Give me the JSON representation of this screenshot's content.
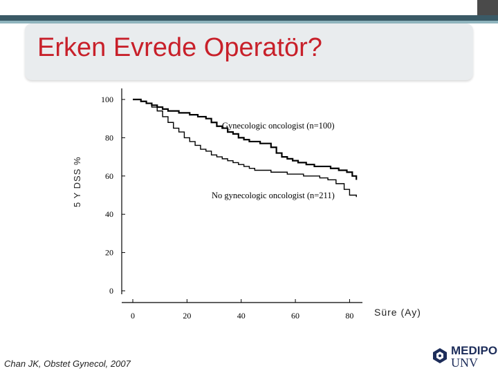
{
  "slide": {
    "title": "Erken Evrede Operatör?",
    "citation": "Chan JK, Obstet Gynecol, 2007",
    "logo": {
      "name": "MEDIPOL",
      "sub": "UNV"
    }
  },
  "colors": {
    "title": "#c8202a",
    "line": "#000000",
    "header_bar": "#3a5a66",
    "logo": "#1d2d5a"
  },
  "chart_data": {
    "type": "line",
    "xlabel": "Süre (Ay)",
    "ylabel": "5 Y DSS %",
    "xlim": [
      0,
      85
    ],
    "ylim": [
      0,
      100
    ],
    "xticks": [
      0,
      20,
      40,
      60,
      80
    ],
    "yticks": [
      0,
      20,
      40,
      60,
      80,
      100
    ],
    "series": [
      {
        "name": "Gynecologic oncologist (n=100)",
        "style": "step",
        "x": [
          0,
          3,
          5,
          7,
          9,
          11,
          13,
          15,
          17,
          19,
          21,
          24,
          27,
          29,
          31,
          33,
          35,
          37,
          39,
          41,
          43,
          45,
          47,
          49,
          51,
          53,
          55,
          57,
          59,
          61,
          64,
          67,
          70,
          73,
          76,
          79,
          81,
          82.5
        ],
        "y": [
          100,
          99,
          98,
          97,
          96,
          95,
          94,
          94,
          93,
          93,
          92,
          91,
          90,
          88,
          86,
          85,
          83,
          82,
          80,
          79,
          78,
          78,
          77,
          77,
          75,
          72,
          70,
          69,
          68,
          67,
          66,
          65,
          65,
          64,
          63,
          62,
          60,
          58
        ]
      },
      {
        "name": "No gynecologic oncologist (n=211)",
        "style": "step",
        "x": [
          0,
          3,
          5,
          7,
          9,
          11,
          13,
          15,
          17,
          19,
          21,
          23,
          25,
          27,
          29,
          31,
          33,
          35,
          37,
          39,
          41,
          43,
          45,
          48,
          51,
          54,
          57,
          60,
          63,
          66,
          69,
          72,
          75,
          78,
          80,
          82.5
        ],
        "y": [
          100,
          99,
          98,
          96,
          94,
          91,
          88,
          85,
          83,
          80,
          78,
          76,
          74,
          73,
          71,
          70,
          69,
          68,
          67,
          66,
          65,
          64,
          63,
          63,
          62,
          62,
          61,
          61,
          60,
          60,
          59,
          58,
          56,
          53,
          50,
          49
        ]
      }
    ]
  }
}
